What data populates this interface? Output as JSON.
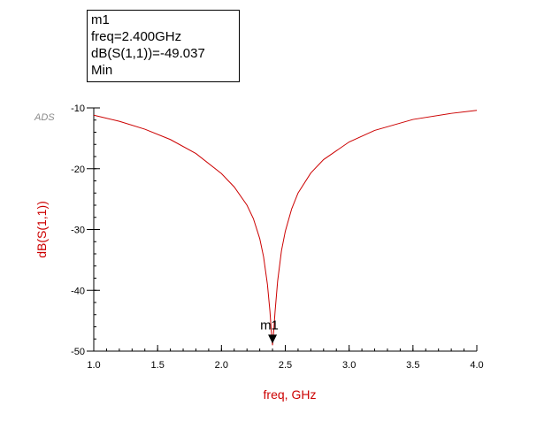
{
  "watermark": "ADS",
  "marker_box": {
    "name": "m1",
    "freq_line": "freq=2.400GHz",
    "value_line": "dB(S(1,1))=-49.037",
    "mode": "Min"
  },
  "colors": {
    "trace": "#cc0000",
    "ylabel": "#cc0000",
    "xlabel": "#cc0000",
    "axis": "#000000"
  },
  "chart_data": {
    "type": "line",
    "title": "",
    "xlabel": "freq, GHz",
    "ylabel": "dB(S(1,1))",
    "xlim": [
      1.0,
      4.0
    ],
    "ylim": [
      -50,
      -10
    ],
    "xticks": [
      "1.0",
      "1.5",
      "2.0",
      "2.5",
      "3.0",
      "3.5",
      "4.0"
    ],
    "xtick_values": [
      1.0,
      1.5,
      2.0,
      2.5,
      3.0,
      3.5,
      4.0
    ],
    "yticks": [
      "-10",
      "-20",
      "-30",
      "-40",
      "-50"
    ],
    "ytick_values": [
      -10,
      -20,
      -30,
      -40,
      -50
    ],
    "grid": false,
    "series": [
      {
        "name": "dB(S(1,1))",
        "x": [
          1.0,
          1.2,
          1.4,
          1.6,
          1.8,
          2.0,
          2.1,
          2.2,
          2.25,
          2.3,
          2.33,
          2.36,
          2.38,
          2.39,
          2.4,
          2.41,
          2.42,
          2.44,
          2.47,
          2.5,
          2.55,
          2.6,
          2.7,
          2.8,
          3.0,
          3.2,
          3.5,
          3.8,
          4.0
        ],
        "y": [
          -11.2,
          -12.2,
          -13.5,
          -15.2,
          -17.5,
          -20.8,
          -23.0,
          -26.0,
          -28.2,
          -31.5,
          -34.5,
          -39.0,
          -43.5,
          -46.5,
          -49.037,
          -46.5,
          -43.5,
          -38.5,
          -33.5,
          -30.3,
          -26.6,
          -24.0,
          -20.7,
          -18.5,
          -15.6,
          -13.7,
          -11.9,
          -10.9,
          -10.4
        ]
      }
    ],
    "marker": {
      "label": "m1",
      "x": 2.4,
      "y": -49.037
    }
  }
}
